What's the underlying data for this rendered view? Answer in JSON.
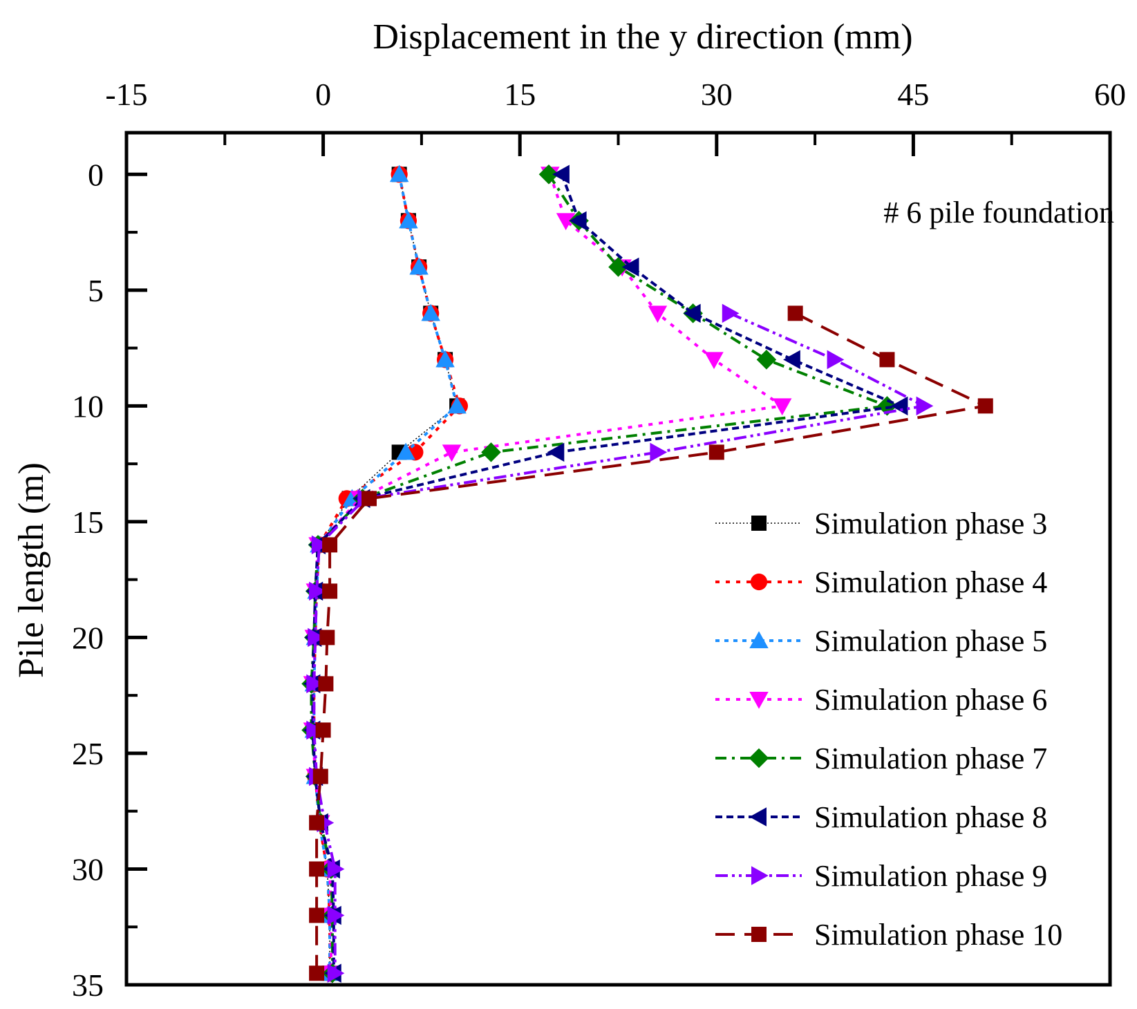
{
  "chart_data": {
    "type": "line",
    "title": "",
    "xlabel": "Displacement in the y direction (mm)",
    "ylabel": "Pile length (m)",
    "xlim": [
      -15,
      60
    ],
    "ylim": [
      -1.8,
      35
    ],
    "x_axis_position": "top",
    "y_axis_inverted": true,
    "x_ticks": [
      -15,
      0,
      15,
      30,
      45,
      60
    ],
    "y_ticks": [
      0,
      5,
      10,
      15,
      20,
      25,
      30,
      35
    ],
    "grid": false,
    "legend_position": "bottom-right",
    "annotation": "# 6 pile foundation",
    "series": [
      {
        "name": "Simulation phase 3",
        "color": "#000000",
        "marker": "square",
        "dash": "2,3",
        "width": 1.5,
        "points": [
          [
            5.8,
            0
          ],
          [
            6.5,
            2
          ],
          [
            7.3,
            4
          ],
          [
            8.2,
            6
          ],
          [
            9.3,
            8
          ],
          [
            10.2,
            10
          ],
          [
            5.8,
            12
          ],
          [
            2.0,
            14
          ],
          [
            -0.3,
            16
          ],
          [
            -0.5,
            18
          ],
          [
            -0.6,
            20
          ],
          [
            -0.7,
            22
          ],
          [
            -0.7,
            24
          ],
          [
            -0.6,
            26
          ],
          [
            -0.3,
            28
          ],
          [
            0.3,
            30
          ],
          [
            0.5,
            32
          ],
          [
            0.5,
            34.5
          ]
        ]
      },
      {
        "name": "Simulation phase 4",
        "color": "#ff0000",
        "marker": "circle",
        "dash": "6,9",
        "width": 4,
        "points": [
          [
            5.8,
            0
          ],
          [
            6.5,
            2
          ],
          [
            7.3,
            4
          ],
          [
            8.2,
            6
          ],
          [
            9.3,
            8
          ],
          [
            10.4,
            10
          ],
          [
            7.0,
            12
          ],
          [
            1.8,
            14
          ],
          [
            -0.3,
            16
          ],
          [
            -0.5,
            18
          ],
          [
            -0.6,
            20
          ],
          [
            -0.7,
            22
          ],
          [
            -0.7,
            24
          ],
          [
            -0.6,
            26
          ],
          [
            -0.3,
            28
          ],
          [
            0.3,
            30
          ],
          [
            0.5,
            32
          ],
          [
            0.5,
            34.5
          ]
        ]
      },
      {
        "name": "Simulation phase 5",
        "color": "#1e90ff",
        "marker": "triangle-up",
        "dash": "6,7",
        "width": 4,
        "points": [
          [
            5.8,
            0
          ],
          [
            6.5,
            2
          ],
          [
            7.3,
            4
          ],
          [
            8.2,
            6
          ],
          [
            9.3,
            8
          ],
          [
            10.2,
            10
          ],
          [
            6.3,
            12
          ],
          [
            2.2,
            14
          ],
          [
            -0.3,
            16
          ],
          [
            -0.5,
            18
          ],
          [
            -0.6,
            20
          ],
          [
            -0.7,
            22
          ],
          [
            -0.7,
            24
          ],
          [
            -0.6,
            26
          ],
          [
            -0.3,
            28
          ],
          [
            0.3,
            30
          ],
          [
            0.5,
            32
          ],
          [
            0.5,
            34.5
          ]
        ]
      },
      {
        "name": "Simulation phase 6",
        "color": "#ff00ff",
        "marker": "triangle-down",
        "dash": "6,9",
        "width": 4,
        "points": [
          [
            17.3,
            0
          ],
          [
            18.5,
            2
          ],
          [
            22.8,
            4
          ],
          [
            25.5,
            6
          ],
          [
            29.8,
            8
          ],
          [
            35.0,
            10
          ],
          [
            9.8,
            12
          ],
          [
            2.8,
            14
          ],
          [
            -0.4,
            16
          ],
          [
            -0.6,
            18
          ],
          [
            -0.7,
            20
          ],
          [
            -0.8,
            22
          ],
          [
            -0.8,
            24
          ],
          [
            -0.6,
            26
          ],
          [
            -0.2,
            28
          ],
          [
            0.5,
            30
          ],
          [
            0.6,
            32
          ],
          [
            0.6,
            34.5
          ]
        ]
      },
      {
        "name": "Simulation phase 7",
        "color": "#008000",
        "marker": "diamond",
        "dash": "16,8,4,8",
        "width": 4,
        "points": [
          [
            17.2,
            0
          ],
          [
            19.5,
            2
          ],
          [
            22.5,
            4
          ],
          [
            28.2,
            6
          ],
          [
            33.8,
            8
          ],
          [
            43.0,
            10
          ],
          [
            12.8,
            12
          ],
          [
            3.0,
            14
          ],
          [
            -0.4,
            16
          ],
          [
            -0.6,
            18
          ],
          [
            -0.7,
            20
          ],
          [
            -0.9,
            22
          ],
          [
            -0.9,
            24
          ],
          [
            -0.6,
            26
          ],
          [
            -0.2,
            28
          ],
          [
            0.6,
            30
          ],
          [
            0.7,
            32
          ],
          [
            0.7,
            34.5
          ]
        ]
      },
      {
        "name": "Simulation phase 8",
        "color": "#000080",
        "marker": "triangle-left",
        "dash": "10,6",
        "width": 4,
        "points": [
          [
            18.2,
            0
          ],
          [
            19.5,
            2
          ],
          [
            23.5,
            4
          ],
          [
            28.2,
            6
          ],
          [
            35.8,
            8
          ],
          [
            44.0,
            10
          ],
          [
            17.8,
            12
          ],
          [
            3.0,
            14
          ],
          [
            -0.4,
            16
          ],
          [
            -0.6,
            18
          ],
          [
            -0.7,
            20
          ],
          [
            -0.8,
            22
          ],
          [
            -0.8,
            24
          ],
          [
            -0.6,
            26
          ],
          [
            -0.2,
            28
          ],
          [
            0.7,
            30
          ],
          [
            0.8,
            32
          ],
          [
            0.8,
            34.5
          ]
        ]
      },
      {
        "name": "Simulation phase 9",
        "color": "#8a00ff",
        "marker": "triangle-right",
        "dash": "18,6,4,6,4,6",
        "width": 4,
        "points": [
          [
            31.0,
            6
          ],
          [
            39.0,
            8
          ],
          [
            45.8,
            10
          ],
          [
            25.5,
            12
          ],
          [
            3.2,
            14
          ],
          [
            -0.3,
            16
          ],
          [
            -0.5,
            18
          ],
          [
            -0.6,
            20
          ],
          [
            -0.7,
            22
          ],
          [
            -0.7,
            24
          ],
          [
            -0.5,
            26
          ],
          [
            0.1,
            28
          ],
          [
            0.9,
            30
          ],
          [
            0.9,
            32
          ],
          [
            0.9,
            34.5
          ]
        ]
      },
      {
        "name": "Simulation phase 10",
        "color": "#8b0000",
        "marker": "square",
        "dash": "28,14",
        "width": 4,
        "points": [
          [
            36.0,
            6
          ],
          [
            43.0,
            8
          ],
          [
            50.5,
            10
          ],
          [
            30.0,
            12
          ],
          [
            3.5,
            14
          ],
          [
            0.5,
            16
          ],
          [
            0.5,
            18
          ],
          [
            0.3,
            20
          ],
          [
            0.2,
            22
          ],
          [
            0.0,
            24
          ],
          [
            -0.2,
            26
          ],
          [
            -0.5,
            28
          ],
          [
            -0.5,
            30
          ],
          [
            -0.5,
            32
          ],
          [
            -0.5,
            34.5
          ]
        ]
      }
    ]
  }
}
